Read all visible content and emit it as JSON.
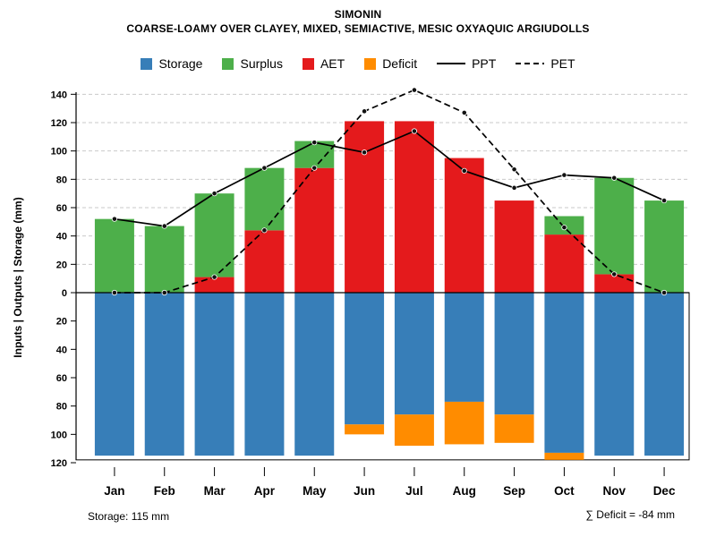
{
  "header": {
    "title": "SIMONIN",
    "subtitle": "COARSE-LOAMY OVER CLAYEY, MIXED, SEMIACTIVE, MESIC OXYAQUIC ARGIUDOLLS"
  },
  "legend": {
    "items": [
      {
        "label": "Storage",
        "type": "swatch",
        "color": "#377eb8"
      },
      {
        "label": "Surplus",
        "type": "swatch",
        "color": "#4daf4a"
      },
      {
        "label": "AET",
        "type": "swatch",
        "color": "#e41a1c"
      },
      {
        "label": "Deficit",
        "type": "swatch",
        "color": "#ff8c00"
      },
      {
        "label": "PPT",
        "type": "line",
        "style": "solid",
        "color": "#000000"
      },
      {
        "label": "PET",
        "type": "line",
        "style": "dashed",
        "color": "#000000"
      }
    ]
  },
  "footer": {
    "storage_note": "Storage: 115 mm",
    "deficit_note": "∑ Deficit = -84 mm"
  },
  "chart_data": {
    "type": "bar",
    "variant": "monthly-water-balance with overlaid lines",
    "title": "SIMONIN",
    "subtitle": "COARSE-LOAMY OVER CLAYEY, MIXED, SEMIACTIVE, MESIC OXYAQUIC ARGIUDOLLS",
    "ylabel": "Inputs | Outputs | Storage  (mm)",
    "categories": [
      "Jan",
      "Feb",
      "Mar",
      "Apr",
      "May",
      "Jun",
      "Jul",
      "Aug",
      "Sep",
      "Oct",
      "Nov",
      "Dec"
    ],
    "series": [
      {
        "name": "Storage",
        "render": "bar-down",
        "color": "#377eb8",
        "values": [
          115,
          115,
          115,
          115,
          115,
          93,
          86,
          77,
          86,
          113,
          115,
          115
        ]
      },
      {
        "name": "Deficit",
        "render": "bar-down-stacked",
        "color": "#ff8c00",
        "values": [
          0,
          0,
          0,
          0,
          0,
          7,
          22,
          30,
          20,
          5,
          0,
          0
        ]
      },
      {
        "name": "AET",
        "render": "bar-up",
        "color": "#e41a1c",
        "values": [
          0,
          0,
          11,
          44,
          88,
          121,
          121,
          95,
          65,
          41,
          13,
          0
        ]
      },
      {
        "name": "Surplus",
        "render": "bar-up-stacked",
        "color": "#4daf4a",
        "values": [
          52,
          47,
          59,
          44,
          19,
          0,
          0,
          0,
          0,
          13,
          68,
          65
        ]
      },
      {
        "name": "PPT",
        "render": "line",
        "style": "solid",
        "color": "#000000",
        "values": [
          52,
          47,
          70,
          88,
          106,
          99,
          114,
          86,
          74,
          83,
          81,
          65
        ]
      },
      {
        "name": "PET",
        "render": "line",
        "style": "dashed",
        "color": "#000000",
        "values": [
          0,
          0,
          11,
          44,
          88,
          128,
          143,
          127,
          87,
          46,
          13,
          0
        ]
      }
    ],
    "y_ticks_up": [
      0,
      20,
      40,
      60,
      80,
      100,
      120,
      140
    ],
    "y_ticks_down": [
      20,
      40,
      60,
      80,
      100,
      120
    ],
    "grid_values": [
      20,
      40,
      60,
      80,
      100,
      120,
      140
    ],
    "ylim": [
      -120,
      150
    ],
    "grid": "dashed horizontal above zero only",
    "legend_position": "top",
    "storage_total_mm": 115,
    "deficit_sum_mm": -84
  }
}
